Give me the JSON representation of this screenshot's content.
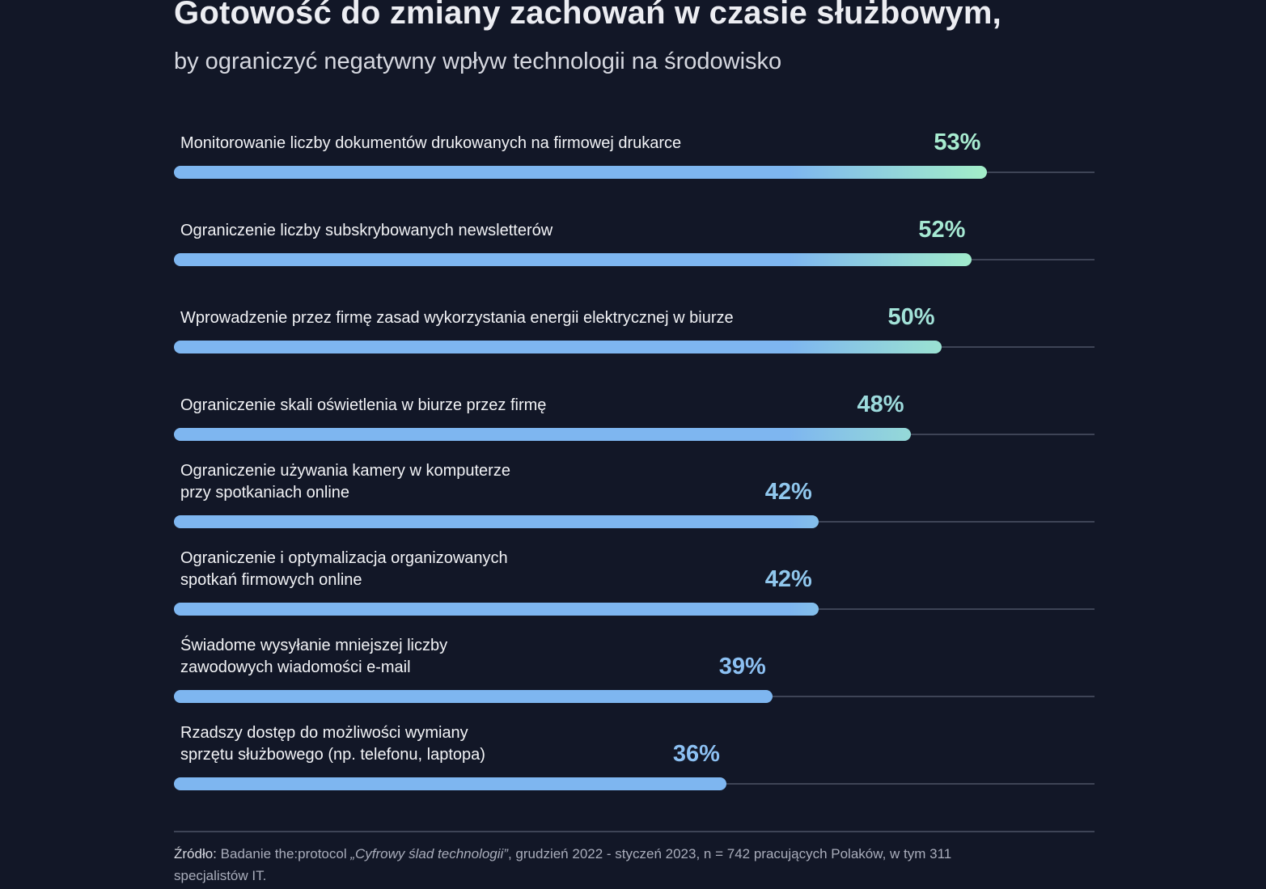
{
  "chart_data": {
    "type": "bar",
    "orientation": "horizontal",
    "title": "Gotowość do zmiany zachowań w czasie służbowym,",
    "subtitle": "by ograniczyć negatywny wpływ technologii na środowisko",
    "categories": [
      "Monitorowanie liczby dokumentów drukowanych na firmowej drukarce",
      "Ograniczenie liczby subskrybowanych newsletterów",
      "Wprowadzenie przez firmę zasad wykorzystania energii elektrycznej w biurze",
      "Ograniczenie skali oświetlenia w biurze przez firmę",
      "Ograniczenie używania kamery w komputerze\nprzy spotkaniach online",
      "Ograniczenie i optymalizacja organizowanych\nspotkań firmowych online",
      "Świadome wysyłanie mniejszej liczby\nzawodowych wiadomości e-mail",
      "Rzadszy dostęp do możliwości wymiany\nsprzętu służbowego (np. telefonu, laptopa)"
    ],
    "values": [
      53,
      52,
      50,
      48,
      42,
      42,
      39,
      36
    ],
    "value_labels": [
      "53%",
      "52%",
      "50%",
      "48%",
      "42%",
      "42%",
      "39%",
      "36%"
    ],
    "unit": "%",
    "xlim": [
      0,
      60
    ],
    "grid": false,
    "legend": "none"
  },
  "colors": {
    "background": "#121727",
    "bar_start": "#7eb6f0",
    "bar_end": "#a4f0c8",
    "value_low": "#8cc0f2",
    "value_high": "#a8ecd0",
    "track": "#3e4456"
  },
  "source": {
    "label": "Źródło:",
    "prefix": "Badanie the:protocol",
    "study": "„Cyfrowy ślad technologii”",
    "suffix": ", grudzień 2022 - styczeń 2023, n = 742 pracujących Polaków, w tym 311 specjalistów IT."
  }
}
